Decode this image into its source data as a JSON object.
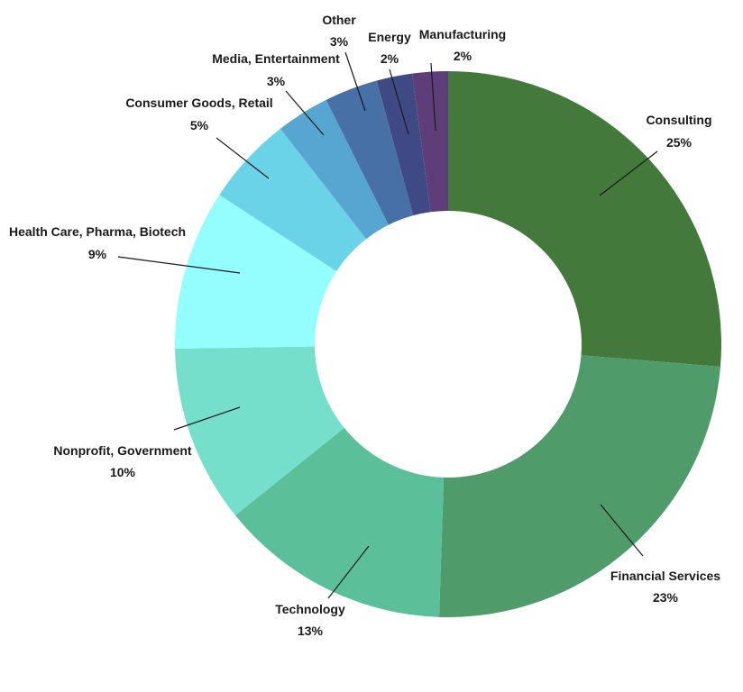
{
  "chart_data": {
    "type": "pie",
    "title": "",
    "donut": true,
    "slices": [
      {
        "label": "Consulting",
        "value": 25,
        "display": "25%",
        "color": "#437a3c"
      },
      {
        "label": "Financial Services",
        "value": 23,
        "display": "23%",
        "color": "#4f9c6a"
      },
      {
        "label": "Technology",
        "value": 13,
        "display": "13%",
        "color": "#5bbf9a"
      },
      {
        "label": "Nonprofit, Government",
        "value": 10,
        "display": "10%",
        "color": "#76dfcc"
      },
      {
        "label": "Health Care, Pharma, Biotech",
        "value": 9,
        "display": "9%",
        "color": "#94fdfd"
      },
      {
        "label": "Consumer Goods, Retail",
        "value": 5,
        "display": "5%",
        "color": "#6ad3e8"
      },
      {
        "label": "Media, Entertainment",
        "value": 3,
        "display": "3%",
        "color": "#56a6d1"
      },
      {
        "label": "Other",
        "value": 3,
        "display": "3%",
        "color": "#4670a6"
      },
      {
        "label": "Energy",
        "value": 2,
        "display": "2%",
        "color": "#3f4a85"
      },
      {
        "label": "Manufacturing",
        "value": 2,
        "display": "2%",
        "color": "#5d3e78"
      }
    ]
  }
}
